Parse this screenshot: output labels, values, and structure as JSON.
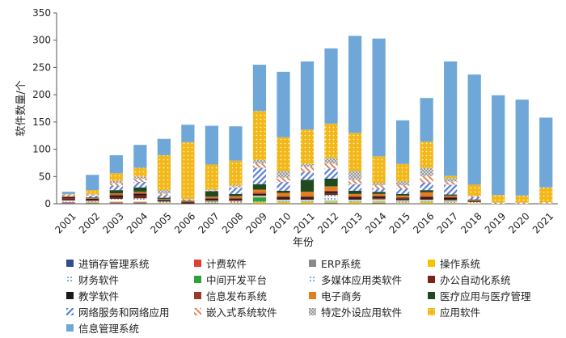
{
  "chart_data": {
    "type": "bar",
    "stacked": true,
    "title": "",
    "xlabel": "年份",
    "ylabel": "软件数量/个",
    "ylim": [
      0,
      350
    ],
    "yticks": [
      0,
      50,
      100,
      150,
      200,
      250,
      300,
      350
    ],
    "grid": false,
    "legend_position": "bottom",
    "categories": [
      "2001",
      "2002",
      "2003",
      "2004",
      "2005",
      "2006",
      "2007",
      "2008",
      "2009",
      "2010",
      "2011",
      "2012",
      "2013",
      "2014",
      "2015",
      "2016",
      "2017",
      "2018",
      "2019",
      "2020",
      "2021"
    ],
    "series": [
      {
        "name": "进销存管理系统",
        "color": "#2f4f8f",
        "pattern": "solid",
        "values": [
          1,
          1,
          1,
          1,
          0,
          0,
          1,
          0,
          0,
          0,
          0,
          1,
          0,
          1,
          0,
          0,
          0,
          0,
          0,
          0,
          0
        ]
      },
      {
        "name": "计费软件",
        "color": "#e04030",
        "pattern": "solid",
        "values": [
          1,
          0,
          1,
          1,
          0,
          0,
          0,
          0,
          0,
          0,
          0,
          0,
          0,
          0,
          0,
          0,
          0,
          0,
          0,
          0,
          0
        ]
      },
      {
        "name": "ERP系统",
        "color": "#8a8a8a",
        "pattern": "solid",
        "values": [
          1,
          1,
          1,
          1,
          1,
          0,
          0,
          1,
          1,
          1,
          1,
          1,
          1,
          1,
          1,
          1,
          1,
          0,
          0,
          0,
          0
        ]
      },
      {
        "name": "操作系统",
        "color": "#f5c400",
        "pattern": "solid",
        "values": [
          0,
          1,
          1,
          1,
          1,
          0,
          1,
          1,
          2,
          2,
          2,
          2,
          2,
          2,
          1,
          2,
          1,
          1,
          0,
          0,
          1
        ]
      },
      {
        "name": "财务软件",
        "color": "#3a6fb5",
        "pattern": "dots",
        "values": [
          1,
          1,
          2,
          2,
          1,
          0,
          1,
          1,
          1,
          1,
          1,
          1,
          1,
          1,
          1,
          1,
          1,
          1,
          0,
          0,
          0
        ]
      },
      {
        "name": "中间开发平台",
        "color": "#2ea03a",
        "pattern": "solid",
        "values": [
          0,
          0,
          0,
          0,
          0,
          0,
          1,
          0,
          8,
          1,
          1,
          1,
          1,
          1,
          1,
          1,
          1,
          0,
          0,
          0,
          0
        ]
      },
      {
        "name": "多媒体应用类软件",
        "color": "#3b2a7a",
        "pattern": "dots",
        "values": [
          2,
          1,
          3,
          4,
          1,
          0,
          1,
          2,
          2,
          2,
          2,
          10,
          2,
          2,
          2,
          2,
          2,
          1,
          0,
          0,
          0
        ]
      },
      {
        "name": "办公自动化系统",
        "color": "#7a2418",
        "pattern": "solid",
        "values": [
          4,
          2,
          3,
          5,
          1,
          2,
          2,
          2,
          2,
          2,
          2,
          3,
          2,
          2,
          2,
          2,
          2,
          1,
          0,
          0,
          0
        ]
      },
      {
        "name": "教学软件",
        "color": "#1a1a1a",
        "pattern": "solid",
        "values": [
          2,
          2,
          3,
          3,
          2,
          1,
          2,
          2,
          2,
          3,
          3,
          3,
          3,
          3,
          2,
          3,
          3,
          1,
          0,
          0,
          0
        ]
      },
      {
        "name": "信息发布系统",
        "color": "#9a3a2a",
        "pattern": "solid",
        "values": [
          1,
          1,
          2,
          2,
          1,
          1,
          2,
          2,
          2,
          2,
          2,
          2,
          2,
          2,
          2,
          2,
          2,
          1,
          0,
          0,
          0
        ]
      },
      {
        "name": "电子商务",
        "color": "#e87d20",
        "pattern": "solid",
        "values": [
          1,
          1,
          2,
          2,
          1,
          1,
          2,
          3,
          6,
          6,
          8,
          8,
          4,
          3,
          3,
          7,
          2,
          1,
          0,
          0,
          0
        ]
      },
      {
        "name": "医疗应用与医疗管理",
        "color": "#1f4a1f",
        "pattern": "solid",
        "values": [
          0,
          1,
          6,
          8,
          2,
          1,
          10,
          4,
          10,
          4,
          22,
          14,
          6,
          4,
          3,
          4,
          2,
          1,
          0,
          0,
          0
        ]
      },
      {
        "name": "网络服务和网络应用",
        "color": "#5a7fd8",
        "pattern": "hatch-blue",
        "values": [
          2,
          3,
          8,
          10,
          5,
          1,
          1,
          12,
          30,
          16,
          14,
          18,
          12,
          6,
          10,
          14,
          18,
          4,
          1,
          1,
          1
        ]
      },
      {
        "name": "嵌入式系统软件",
        "color": "#e07a4a",
        "pattern": "hatch-orange",
        "values": [
          1,
          2,
          5,
          6,
          3,
          1,
          1,
          2,
          8,
          8,
          10,
          10,
          8,
          6,
          6,
          12,
          6,
          2,
          1,
          1,
          1
        ]
      },
      {
        "name": "特定外设应用软件",
        "color": "#b0b0b0",
        "pattern": "checker",
        "values": [
          0,
          1,
          4,
          4,
          6,
          1,
          1,
          2,
          6,
          12,
          5,
          10,
          16,
          4,
          7,
          15,
          6,
          1,
          0,
          0,
          0
        ]
      },
      {
        "name": "应用软件",
        "color": "#f2b71a",
        "pattern": "dots-yellow",
        "values": [
          1,
          7,
          14,
          16,
          64,
          104,
          46,
          45,
          90,
          62,
          63,
          63,
          70,
          49,
          32,
          48,
          4,
          20,
          14,
          13,
          27
        ]
      },
      {
        "name": "信息管理系统",
        "color": "#6fa8d8",
        "pattern": "solid",
        "values": [
          4,
          28,
          33,
          42,
          30,
          32,
          71,
          63,
          85,
          120,
          125,
          138,
          178,
          216,
          80,
          80,
          210,
          202,
          183,
          176,
          128
        ]
      }
    ]
  }
}
